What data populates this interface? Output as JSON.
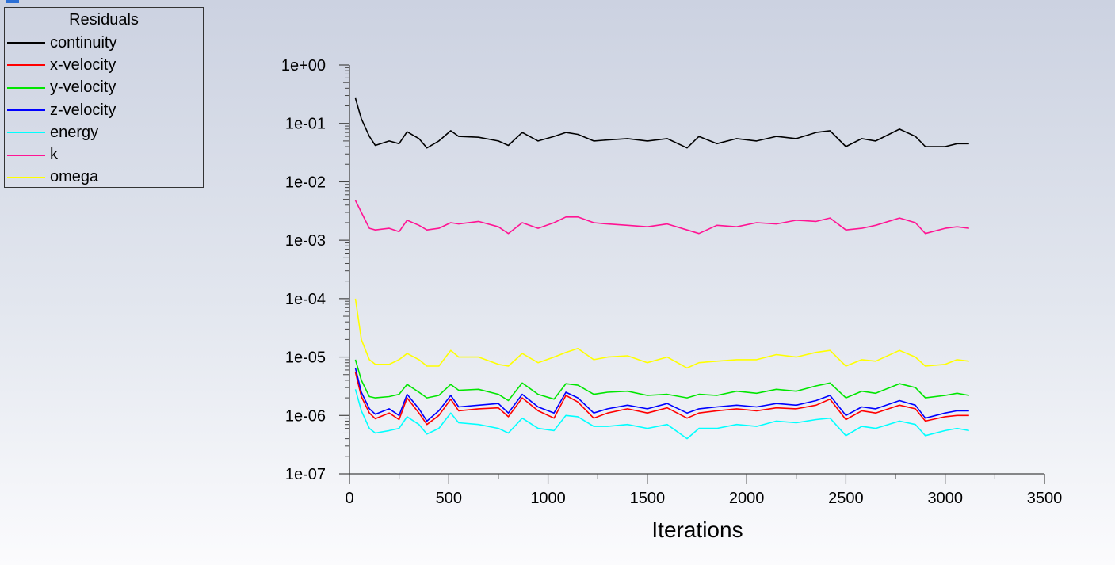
{
  "chart_data": {
    "type": "line",
    "title": "",
    "legend_title": "Residuals",
    "legend_position": "top-left",
    "xlabel": "Iterations",
    "ylabel": "",
    "xlim": [
      0,
      3500
    ],
    "ylim": [
      1e-07,
      1
    ],
    "yscale": "log",
    "x_ticks": [
      "0",
      "500",
      "1000",
      "1500",
      "2000",
      "2500",
      "3000",
      "3500"
    ],
    "y_ticks": [
      "1e+00",
      "1e-01",
      "1e-02",
      "1e-03",
      "1e-04",
      "1e-05",
      "1e-06",
      "1e-07"
    ],
    "x": [
      30,
      60,
      100,
      130,
      200,
      250,
      290,
      350,
      390,
      450,
      510,
      550,
      650,
      750,
      800,
      870,
      950,
      1030,
      1090,
      1150,
      1230,
      1300,
      1400,
      1500,
      1600,
      1700,
      1760,
      1850,
      1950,
      2050,
      2150,
      2250,
      2350,
      2420,
      2500,
      2580,
      2650,
      2770,
      2850,
      2900,
      3000,
      3060,
      3120
    ],
    "series": [
      {
        "name": "continuity",
        "color": "#000000",
        "values": [
          0.27,
          0.12,
          0.06,
          0.042,
          0.05,
          0.045,
          0.072,
          0.055,
          0.038,
          0.05,
          0.075,
          0.06,
          0.058,
          0.05,
          0.042,
          0.07,
          0.05,
          0.06,
          0.07,
          0.065,
          0.05,
          0.052,
          0.055,
          0.05,
          0.055,
          0.038,
          0.06,
          0.045,
          0.055,
          0.05,
          0.06,
          0.055,
          0.07,
          0.075,
          0.04,
          0.055,
          0.05,
          0.08,
          0.06,
          0.04,
          0.04,
          0.045,
          0.045
        ]
      },
      {
        "name": "x-velocity",
        "color": "#ff0000",
        "values": [
          5.5e-06,
          2.1e-06,
          1.1e-06,
          8.8e-07,
          1.1e-06,
          8.5e-07,
          2e-06,
          1.1e-06,
          7e-07,
          1e-06,
          1.9e-06,
          1.2e-06,
          1.3e-06,
          1.35e-06,
          9.5e-07,
          2e-06,
          1.2e-06,
          9e-07,
          2.2e-06,
          1.7e-06,
          9e-07,
          1.1e-06,
          1.3e-06,
          1.1e-06,
          1.35e-06,
          9e-07,
          1.1e-06,
          1.2e-06,
          1.3e-06,
          1.2e-06,
          1.35e-06,
          1.3e-06,
          1.5e-06,
          1.9e-06,
          8.5e-07,
          1.2e-06,
          1.1e-06,
          1.5e-06,
          1.3e-06,
          8e-07,
          9.5e-07,
          1e-06,
          1e-06
        ]
      },
      {
        "name": "y-velocity",
        "color": "#00e600",
        "values": [
          9e-06,
          4e-06,
          2.1e-06,
          2e-06,
          2.1e-06,
          2.3e-06,
          3.4e-06,
          2.5e-06,
          2e-06,
          2.2e-06,
          3.4e-06,
          2.7e-06,
          2.8e-06,
          2.3e-06,
          1.8e-06,
          3.6e-06,
          2.3e-06,
          1.9e-06,
          3.5e-06,
          3.3e-06,
          2.3e-06,
          2.5e-06,
          2.6e-06,
          2.2e-06,
          2.3e-06,
          2e-06,
          2.3e-06,
          2.2e-06,
          2.6e-06,
          2.4e-06,
          2.8e-06,
          2.6e-06,
          3.2e-06,
          3.6e-06,
          2e-06,
          2.6e-06,
          2.4e-06,
          3.5e-06,
          3e-06,
          2e-06,
          2.2e-06,
          2.4e-06,
          2.2e-06
        ]
      },
      {
        "name": "z-velocity",
        "color": "#0000ff",
        "values": [
          6.5e-06,
          2.5e-06,
          1.3e-06,
          1.05e-06,
          1.3e-06,
          1e-06,
          2.3e-06,
          1.3e-06,
          8e-07,
          1.2e-06,
          2.2e-06,
          1.4e-06,
          1.5e-06,
          1.6e-06,
          1.1e-06,
          2.3e-06,
          1.4e-06,
          1.1e-06,
          2.5e-06,
          2e-06,
          1.1e-06,
          1.3e-06,
          1.5e-06,
          1.3e-06,
          1.6e-06,
          1.1e-06,
          1.3e-06,
          1.4e-06,
          1.5e-06,
          1.4e-06,
          1.6e-06,
          1.5e-06,
          1.8e-06,
          2.2e-06,
          1e-06,
          1.4e-06,
          1.3e-06,
          1.8e-06,
          1.5e-06,
          9e-07,
          1.1e-06,
          1.2e-06,
          1.2e-06
        ]
      },
      {
        "name": "energy",
        "color": "#00ffff",
        "values": [
          2.8e-06,
          1.2e-06,
          6e-07,
          5e-07,
          5.5e-07,
          6e-07,
          9.5e-07,
          7e-07,
          4.8e-07,
          6e-07,
          1.1e-06,
          7.5e-07,
          7e-07,
          6e-07,
          5e-07,
          9e-07,
          6e-07,
          5.5e-07,
          1e-06,
          9.5e-07,
          6.5e-07,
          6.5e-07,
          7e-07,
          6e-07,
          7e-07,
          4e-07,
          6e-07,
          6e-07,
          7e-07,
          6.5e-07,
          8e-07,
          7.5e-07,
          8.5e-07,
          9e-07,
          4.5e-07,
          6.5e-07,
          6e-07,
          8e-07,
          7e-07,
          4.5e-07,
          5.5e-07,
          6e-07,
          5.5e-07
        ]
      },
      {
        "name": "k",
        "color": "#ff1493",
        "values": [
          0.0048,
          0.003,
          0.0016,
          0.0015,
          0.0016,
          0.0014,
          0.0022,
          0.0018,
          0.0015,
          0.0016,
          0.002,
          0.0019,
          0.0021,
          0.0017,
          0.0013,
          0.002,
          0.0016,
          0.002,
          0.0025,
          0.0025,
          0.002,
          0.0019,
          0.0018,
          0.0017,
          0.0019,
          0.0015,
          0.0013,
          0.0018,
          0.0017,
          0.002,
          0.0019,
          0.0022,
          0.0021,
          0.0024,
          0.0015,
          0.0016,
          0.0018,
          0.0024,
          0.002,
          0.0013,
          0.0016,
          0.0017,
          0.0016
        ]
      },
      {
        "name": "omega",
        "color": "#ffff00",
        "values": [
          0.0001,
          2e-05,
          9e-06,
          7.5e-06,
          7.5e-06,
          9e-06,
          1.15e-05,
          9e-06,
          7e-06,
          7e-06,
          1.3e-05,
          1e-05,
          1e-05,
          7.5e-06,
          7e-06,
          1.15e-05,
          8e-06,
          1e-05,
          1.2e-05,
          1.4e-05,
          9e-06,
          1e-05,
          1.05e-05,
          8e-06,
          1e-05,
          6.5e-06,
          8e-06,
          8.5e-06,
          9e-06,
          9e-06,
          1.1e-05,
          1e-05,
          1.2e-05,
          1.3e-05,
          7e-06,
          9e-06,
          8.5e-06,
          1.3e-05,
          1e-05,
          7e-06,
          7.5e-06,
          9e-06,
          8.5e-06
        ]
      }
    ]
  }
}
